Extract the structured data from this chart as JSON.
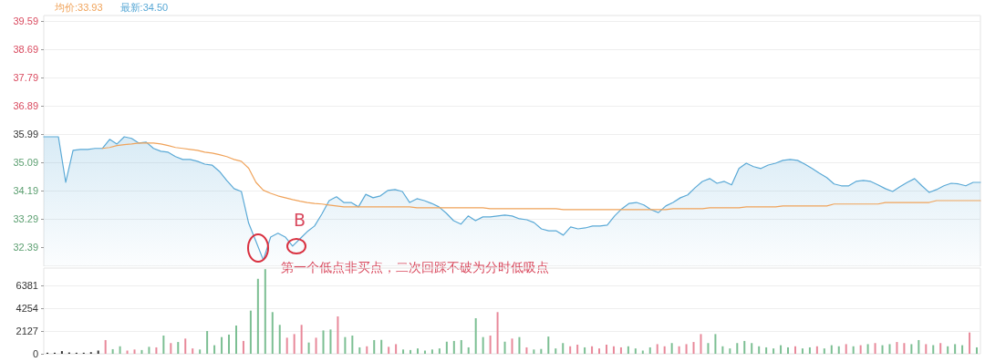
{
  "chart_data": [
    {
      "type": "line",
      "legend": "top left",
      "grid": "y",
      "tick_labels": "y",
      "line_style": "solid",
      "categories": [
        null,
        null,
        null,
        null,
        null,
        null,
        null,
        null,
        null,
        null,
        null,
        null,
        null,
        null,
        null,
        null,
        null,
        null,
        null,
        null,
        null,
        null,
        null,
        null,
        null,
        null,
        null,
        null,
        null,
        null,
        null,
        null,
        null,
        null,
        null,
        null,
        null,
        null,
        null,
        null,
        null,
        null,
        null,
        null,
        null,
        null,
        null,
        null,
        null,
        null,
        null,
        null,
        null,
        null,
        null,
        null,
        null,
        null,
        null,
        null,
        null,
        null,
        null,
        null,
        null,
        null,
        null,
        null,
        null,
        null,
        null,
        null,
        null,
        null,
        null,
        null,
        null,
        null,
        null,
        null,
        null,
        null,
        null,
        null,
        null,
        null,
        null,
        null,
        null,
        null,
        null,
        null,
        null,
        null,
        null,
        null,
        null,
        null,
        null,
        null,
        null,
        null,
        null,
        null,
        null,
        null,
        null,
        null,
        null,
        null,
        null,
        null,
        null,
        null,
        null,
        null,
        null,
        null,
        null,
        null,
        null,
        null,
        null,
        null,
        null,
        null,
        null,
        null,
        null
      ],
      "ylim": [
        31.78,
        39.76
      ],
      "yticks": [
        32.39,
        33.29,
        34.19,
        35.09,
        35.99,
        36.89,
        37.79,
        38.69,
        39.59
      ],
      "series": [
        {
          "name": "最新:34.50",
          "type": "area",
          "color": "#5aa9d6",
          "values": [
            35.9,
            35.9,
            35.9,
            34.45,
            35.47,
            35.5,
            35.5,
            35.53,
            35.53,
            35.82,
            35.67,
            35.9,
            35.85,
            35.7,
            35.73,
            35.53,
            35.44,
            35.41,
            35.27,
            35.18,
            35.18,
            35.12,
            35.03,
            35.0,
            34.8,
            34.51,
            34.25,
            34.16,
            33.15,
            32.57,
            31.98,
            32.71,
            32.83,
            32.71,
            32.42,
            32.65,
            32.88,
            33.06,
            33.44,
            33.87,
            33.99,
            33.81,
            33.81,
            33.67,
            34.07,
            33.96,
            34.02,
            34.19,
            34.22,
            34.16,
            33.81,
            33.93,
            33.87,
            33.78,
            33.67,
            33.47,
            33.23,
            33.12,
            33.38,
            33.23,
            33.35,
            33.35,
            33.38,
            33.41,
            33.38,
            33.29,
            33.26,
            33.17,
            32.97,
            32.91,
            32.91,
            32.77,
            33.03,
            32.97,
            33.0,
            33.06,
            33.06,
            33.09,
            33.38,
            33.61,
            33.78,
            33.81,
            33.73,
            33.58,
            33.49,
            33.7,
            33.81,
            33.96,
            34.05,
            34.28,
            34.48,
            34.57,
            34.42,
            34.48,
            34.37,
            34.89,
            35.06,
            34.95,
            34.89,
            35.0,
            35.06,
            35.15,
            35.18,
            35.15,
            35.03,
            34.89,
            34.74,
            34.6,
            34.4,
            34.34,
            34.34,
            34.48,
            34.51,
            34.48,
            34.37,
            34.25,
            34.16,
            34.31,
            34.45,
            34.57,
            34.34,
            34.13,
            34.22,
            34.34,
            34.42,
            34.4,
            34.34,
            34.45,
            34.45
          ]
        },
        {
          "name": "均价:33.93",
          "type": "line",
          "color": "#f0a35a",
          "values": [
            null,
            null,
            null,
            null,
            null,
            null,
            null,
            null,
            35.53,
            35.56,
            35.62,
            35.65,
            35.67,
            35.7,
            35.7,
            35.7,
            35.67,
            35.62,
            35.56,
            35.53,
            35.5,
            35.47,
            35.41,
            35.38,
            35.33,
            35.27,
            35.18,
            35.12,
            34.9,
            34.45,
            34.2,
            34.1,
            34.02,
            33.96,
            33.9,
            33.85,
            33.81,
            33.78,
            33.76,
            33.73,
            33.7,
            33.67,
            33.67,
            33.67,
            33.67,
            33.67,
            33.67,
            33.67,
            33.67,
            33.67,
            33.67,
            33.64,
            33.64,
            33.64,
            33.64,
            33.64,
            33.64,
            33.64,
            33.64,
            33.64,
            33.64,
            33.61,
            33.61,
            33.61,
            33.61,
            33.61,
            33.61,
            33.61,
            33.61,
            33.61,
            33.61,
            33.58,
            33.58,
            33.58,
            33.58,
            33.58,
            33.58,
            33.58,
            33.58,
            33.58,
            33.58,
            33.58,
            33.58,
            33.58,
            33.58,
            33.58,
            33.61,
            33.61,
            33.61,
            33.61,
            33.61,
            33.64,
            33.64,
            33.64,
            33.64,
            33.64,
            33.67,
            33.67,
            33.67,
            33.67,
            33.67,
            33.7,
            33.7,
            33.7,
            33.7,
            33.7,
            33.7,
            33.7,
            33.76,
            33.76,
            33.76,
            33.76,
            33.76,
            33.76,
            33.76,
            33.81,
            33.81,
            33.81,
            33.81,
            33.81,
            33.81,
            33.81,
            33.87,
            33.87,
            33.87,
            33.87,
            33.87,
            33.87,
            33.87
          ]
        }
      ],
      "annotations": [
        "B",
        "第一个低点非买点，二次回踩不破为分时低吸点"
      ]
    },
    {
      "type": "bar",
      "grid": "y",
      "tick_labels": "y",
      "categories": [
        null,
        null,
        null,
        null,
        null,
        null,
        null,
        null,
        null,
        null,
        null,
        null,
        null,
        null,
        null,
        null,
        null,
        null,
        null,
        null,
        null,
        null,
        null,
        null,
        null,
        null,
        null,
        null,
        null,
        null,
        null,
        null,
        null,
        null,
        null,
        null,
        null,
        null,
        null,
        null,
        null,
        null,
        null,
        null,
        null,
        null,
        null,
        null,
        null,
        null,
        null,
        null,
        null,
        null,
        null,
        null,
        null,
        null,
        null,
        null,
        null,
        null,
        null,
        null,
        null,
        null,
        null,
        null,
        null,
        null,
        null,
        null,
        null,
        null,
        null,
        null,
        null,
        null,
        null,
        null,
        null,
        null,
        null,
        null,
        null,
        null,
        null,
        null,
        null,
        null,
        null,
        null,
        null,
        null,
        null,
        null,
        null,
        null,
        null,
        null,
        null,
        null,
        null,
        null,
        null,
        null,
        null,
        null,
        null,
        null,
        null,
        null,
        null,
        null,
        null,
        null,
        null,
        null,
        null,
        null,
        null,
        null,
        null,
        null,
        null,
        null,
        null,
        null,
        null
      ],
      "ylim": [
        0,
        8000
      ],
      "yticks": [
        0,
        2127,
        4254,
        6381
      ],
      "values": [
        100,
        100,
        250,
        120,
        100,
        100,
        150,
        300,
        1280,
        430,
        700,
        300,
        400,
        350,
        650,
        600,
        1700,
        1000,
        1100,
        1420,
        500,
        400,
        2130,
        800,
        1560,
        1790,
        2640,
        1200,
        4030,
        7000,
        7900,
        3890,
        2700,
        1500,
        1840,
        2700,
        1050,
        1500,
        2180,
        2270,
        3490,
        1560,
        1700,
        600,
        700,
        1280,
        1300,
        650,
        900,
        400,
        350,
        500,
        300,
        400,
        500,
        1130,
        1200,
        1280,
        600,
        3320,
        1560,
        1700,
        3890,
        1130,
        1420,
        1560,
        600,
        400,
        450,
        1610,
        500,
        1000,
        700,
        850,
        600,
        700,
        500,
        850,
        700,
        600,
        700,
        500,
        300,
        600,
        900,
        700,
        1000,
        700,
        900,
        1100,
        1840,
        1000,
        1840,
        700,
        500,
        1000,
        1200,
        1000,
        700,
        600,
        500,
        800,
        600,
        700,
        500,
        600,
        700,
        500,
        800,
        700,
        900,
        700,
        800,
        900,
        1000,
        800,
        900,
        1100,
        1000,
        900,
        1280,
        900,
        800,
        1000,
        700,
        900,
        800,
        1990,
        600
      ],
      "colors": [
        "#333333",
        "#333333",
        "#333333",
        "#333333",
        "#333333",
        "#333333",
        "#333333",
        "#333333",
        "#e8899a",
        "#7cbf93",
        "#7cbf93",
        "#e8899a",
        "#e8899a",
        "#7cbf93",
        "#7cbf93",
        "#e8899a",
        "#7cbf93",
        "#e8899a",
        "#7cbf93",
        "#e8899a",
        "#e8899a",
        "#7cbf93",
        "#7cbf93",
        "#7cbf93",
        "#7cbf93",
        "#7cbf93",
        "#7cbf93",
        "#e8899a",
        "#7cbf93",
        "#7cbf93",
        "#7cbf93",
        "#7cbf93",
        "#7cbf93",
        "#e8899a",
        "#e8899a",
        "#e8899a",
        "#7cbf93",
        "#e8899a",
        "#7cbf93",
        "#7cbf93",
        "#e8899a",
        "#7cbf93",
        "#7cbf93",
        "#7cbf93",
        "#e8899a",
        "#7cbf93",
        "#7cbf93",
        "#e8899a",
        "#e8899a",
        "#7cbf93",
        "#7cbf93",
        "#7cbf93",
        "#7cbf93",
        "#7cbf93",
        "#7cbf93",
        "#7cbf93",
        "#7cbf93",
        "#7cbf93",
        "#7cbf93",
        "#7cbf93",
        "#7cbf93",
        "#e8899a",
        "#e8899a",
        "#7cbf93",
        "#e8899a",
        "#7cbf93",
        "#e8899a",
        "#7cbf93",
        "#7cbf93",
        "#7cbf93",
        "#7cbf93",
        "#7cbf93",
        "#e8899a",
        "#e8899a",
        "#7cbf93",
        "#e8899a",
        "#e8899a",
        "#e8899a",
        "#e8899a",
        "#e8899a",
        "#7cbf93",
        "#7cbf93",
        "#7cbf93",
        "#7cbf93",
        "#e8899a",
        "#e8899a",
        "#7cbf93",
        "#e8899a",
        "#e8899a",
        "#e8899a",
        "#e8899a",
        "#7cbf93",
        "#7cbf93",
        "#7cbf93",
        "#7cbf93",
        "#7cbf93",
        "#7cbf93",
        "#7cbf93",
        "#7cbf93",
        "#7cbf93",
        "#7cbf93",
        "#7cbf93",
        "#7cbf93",
        "#e8899a",
        "#7cbf93",
        "#7cbf93",
        "#e8899a",
        "#7cbf93",
        "#7cbf93",
        "#7cbf93",
        "#e8899a",
        "#7cbf93",
        "#e8899a",
        "#7cbf93",
        "#e8899a",
        "#7cbf93",
        "#7cbf93",
        "#e8899a",
        "#e8899a",
        "#7cbf93",
        "#7cbf93",
        "#e8899a",
        "#7cbf93",
        "#e8899a",
        "#7cbf93",
        "#7cbf93",
        "#7cbf93",
        "#e8899a",
        "#7cbf93"
      ]
    }
  ]
}
